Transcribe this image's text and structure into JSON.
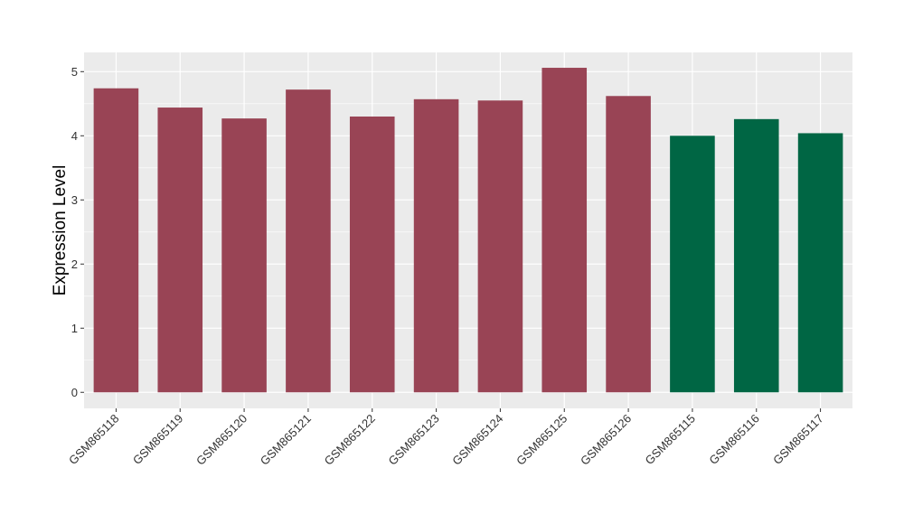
{
  "chart_data": {
    "type": "bar",
    "categories": [
      "GSM865118",
      "GSM865119",
      "GSM865120",
      "GSM865121",
      "GSM865122",
      "GSM865123",
      "GSM865124",
      "GSM865125",
      "GSM865126",
      "GSM865115",
      "GSM865116",
      "GSM865117"
    ],
    "values": [
      4.74,
      4.44,
      4.27,
      4.72,
      4.3,
      4.57,
      4.55,
      5.06,
      4.62,
      4.0,
      4.26,
      4.04
    ],
    "groups": [
      "a",
      "a",
      "a",
      "a",
      "a",
      "a",
      "a",
      "a",
      "a",
      "b",
      "b",
      "b"
    ],
    "group_colors": {
      "a": "#994455",
      "b": "#006644"
    },
    "ylabel": "Expression Level",
    "xlabel": "",
    "ylim": [
      -0.25,
      5.3
    ],
    "yticks": [
      0,
      1,
      2,
      3,
      4,
      5
    ],
    "grid": true,
    "panel_background": "#EBEBEB",
    "grid_color": "#FFFFFF"
  }
}
